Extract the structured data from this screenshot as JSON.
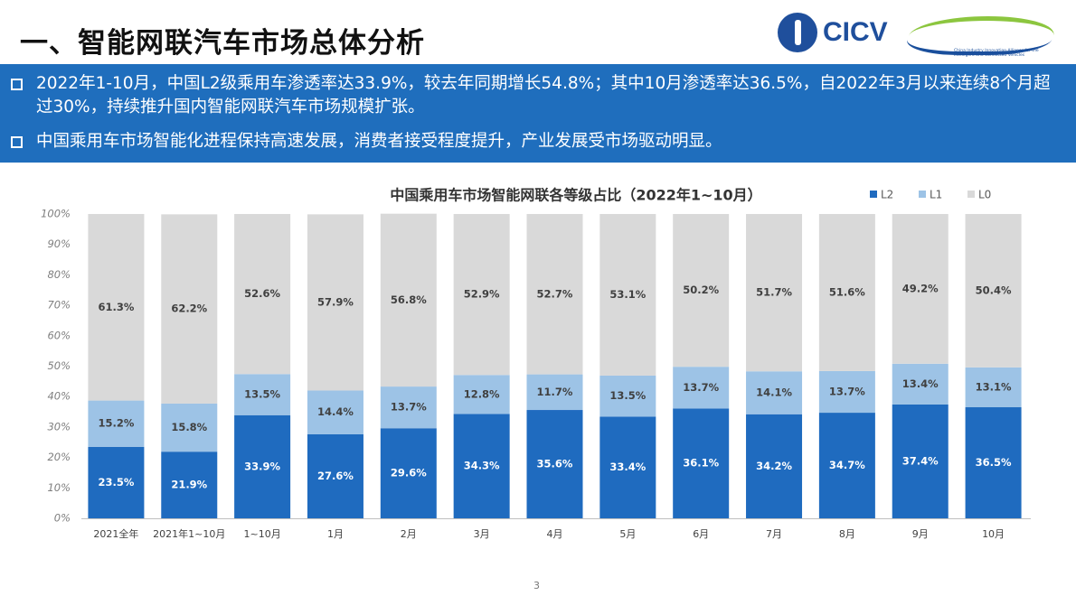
{
  "header": {
    "title": "一、智能网联汽车市场总体分析",
    "logo_text": "CICV",
    "alliance_text": "China Industry Innovation Alliance for the Intelligent and Connected Vehicles"
  },
  "bullets": [
    "2022年1-10月，中国L2级乘用车渗透率达33.9%，较去年同期增长54.8%；其中10月渗透率达36.5%，自2022年3月以来连续8个月超过30%，持续推升国内智能网联汽车市场规模扩张。",
    "中国乘用车市场智能化进程保持高速发展，消费者接受程度提升，产业发展受市场驱动明显。"
  ],
  "page_number": "3",
  "chart_data": {
    "type": "stacked_bar",
    "title": "中国乘用车市场智能网联各等级占比（2022年1~10月）",
    "categories": [
      "2021全年",
      "2021年1~10月",
      "1~10月",
      "1月",
      "2月",
      "3月",
      "4月",
      "5月",
      "6月",
      "7月",
      "8月",
      "9月",
      "10月"
    ],
    "series": [
      {
        "name": "L2",
        "color": "#1f6bbf",
        "values": [
          23.5,
          21.9,
          33.9,
          27.6,
          29.6,
          34.3,
          35.6,
          33.4,
          36.1,
          34.2,
          34.7,
          37.4,
          36.5
        ],
        "value_labels": [
          "23.5%",
          "21.9%",
          "33.9%",
          "27.6%",
          "29.6%",
          "34.3%",
          "35.6%",
          "33.4%",
          "36.1%",
          "34.2%",
          "34.7%",
          "37.4%",
          "36.5%"
        ]
      },
      {
        "name": "L1",
        "color": "#9dc3e6",
        "values": [
          15.2,
          15.8,
          13.5,
          14.4,
          13.7,
          12.8,
          11.7,
          13.5,
          13.7,
          14.1,
          13.7,
          13.4,
          13.1
        ],
        "value_labels": [
          "15.2%",
          "15.8%",
          "13.5%",
          "14.4%",
          "13.7%",
          "12.8%",
          "11.7%",
          "13.5%",
          "13.7%",
          "14.1%",
          "13.7%",
          "13.4%",
          "13.1%"
        ]
      },
      {
        "name": "L0",
        "color": "#d9d9d9",
        "values": [
          61.3,
          62.2,
          52.6,
          57.9,
          56.8,
          52.9,
          52.7,
          53.1,
          50.2,
          51.7,
          51.6,
          49.2,
          50.4
        ],
        "value_labels": [
          "61.3%",
          "62.2%",
          "52.6%",
          "57.9%",
          "56.8%",
          "52.9%",
          "52.7%",
          "53.1%",
          "50.2%",
          "51.7%",
          "51.6%",
          "49.2%",
          "50.4%"
        ]
      }
    ],
    "ylim": [
      0,
      100
    ],
    "yticks": [
      {
        "value": 0,
        "label": "0%"
      },
      {
        "value": 10,
        "label": "10%"
      },
      {
        "value": 20,
        "label": "20%"
      },
      {
        "value": 30,
        "label": "30%"
      },
      {
        "value": 40,
        "label": "40%"
      },
      {
        "value": 50,
        "label": "50%"
      },
      {
        "value": 60,
        "label": "60%"
      },
      {
        "value": 70,
        "label": "70%"
      },
      {
        "value": 80,
        "label": "80%"
      },
      {
        "value": 90,
        "label": "90%"
      },
      {
        "value": 100,
        "label": "100%"
      }
    ],
    "grid": false,
    "legend": "top-right"
  }
}
